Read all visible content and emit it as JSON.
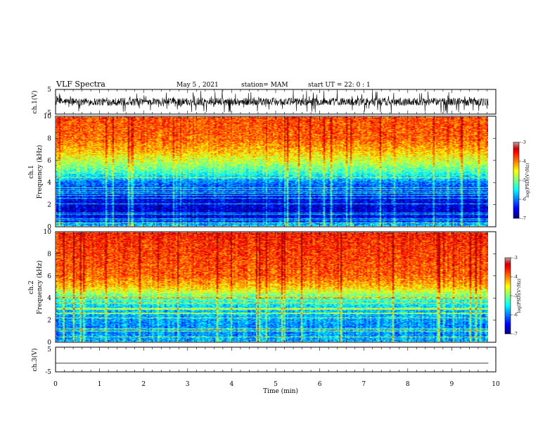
{
  "header": {
    "title": "VLF Spectra",
    "date": "May 5 , 2021",
    "station": "station= MAM",
    "start": "start UT =  22: 0  : 1"
  },
  "chart_data": [
    {
      "type": "line",
      "ylabel": "ch.1(V)",
      "ylim": [
        -5,
        5
      ],
      "yticks": [
        "5",
        "-5"
      ],
      "description_free": true,
      "xlim": [
        0,
        10
      ],
      "data_extent_x": [
        0,
        9.83
      ]
    },
    {
      "type": "heatmap",
      "ylabel_lines": [
        "ch.1",
        "Frequency (kHz)"
      ],
      "ylim": [
        0,
        10
      ],
      "yticks": [
        "0",
        "2",
        "4",
        "6",
        "8",
        "10"
      ],
      "xlim": [
        0,
        10
      ],
      "data_extent_x": [
        0,
        9.83
      ],
      "colorbar": {
        "label": "log(PSD)(V²/Hz)",
        "range": [
          -7,
          -3
        ],
        "ticks": [
          "-3",
          "-4",
          "-5",
          "-6",
          "-7"
        ]
      },
      "profile": [
        {
          "f": 0.0,
          "v": -5.6
        },
        {
          "f": 0.5,
          "v": -6.5
        },
        {
          "f": 1.5,
          "v": -6.7
        },
        {
          "f": 3.0,
          "v": -6.4
        },
        {
          "f": 4.0,
          "v": -6.0
        },
        {
          "f": 5.0,
          "v": -5.2
        },
        {
          "f": 6.0,
          "v": -4.7
        },
        {
          "f": 7.0,
          "v": -4.2
        },
        {
          "f": 8.0,
          "v": -3.9
        },
        {
          "f": 10.0,
          "v": -3.8
        }
      ]
    },
    {
      "type": "heatmap",
      "ylabel_lines": [
        "ch.2",
        "Frequency (kHz)"
      ],
      "ylim": [
        0,
        10
      ],
      "yticks": [
        "0",
        "2",
        "4",
        "6",
        "8",
        "10"
      ],
      "xlim": [
        0,
        10
      ],
      "data_extent_x": [
        0,
        9.83
      ],
      "colorbar": {
        "label": "log(PSD)(V²/Hz)",
        "range": [
          -7,
          -3
        ],
        "ticks": [
          "-3",
          "-4",
          "-5",
          "-6",
          "-7"
        ]
      },
      "profile": [
        {
          "f": 0.0,
          "v": -5.8
        },
        {
          "f": 1.0,
          "v": -6.0
        },
        {
          "f": 3.0,
          "v": -5.7
        },
        {
          "f": 4.0,
          "v": -5.2
        },
        {
          "f": 5.0,
          "v": -4.3
        },
        {
          "f": 6.0,
          "v": -3.9
        },
        {
          "f": 10.0,
          "v": -3.6
        }
      ]
    },
    {
      "type": "line",
      "ylabel": "ch.3(V)",
      "ylim": [
        -5,
        5
      ],
      "yticks": [
        "5",
        "-5"
      ],
      "xlim": [
        0,
        10
      ],
      "data_extent_x": [
        0,
        9.83
      ],
      "y_constant": -1.5,
      "xlabel": "Time (min)",
      "xticks": [
        "0",
        "1",
        "2",
        "3",
        "4",
        "5",
        "6",
        "7",
        "8",
        "9",
        "10"
      ]
    }
  ]
}
